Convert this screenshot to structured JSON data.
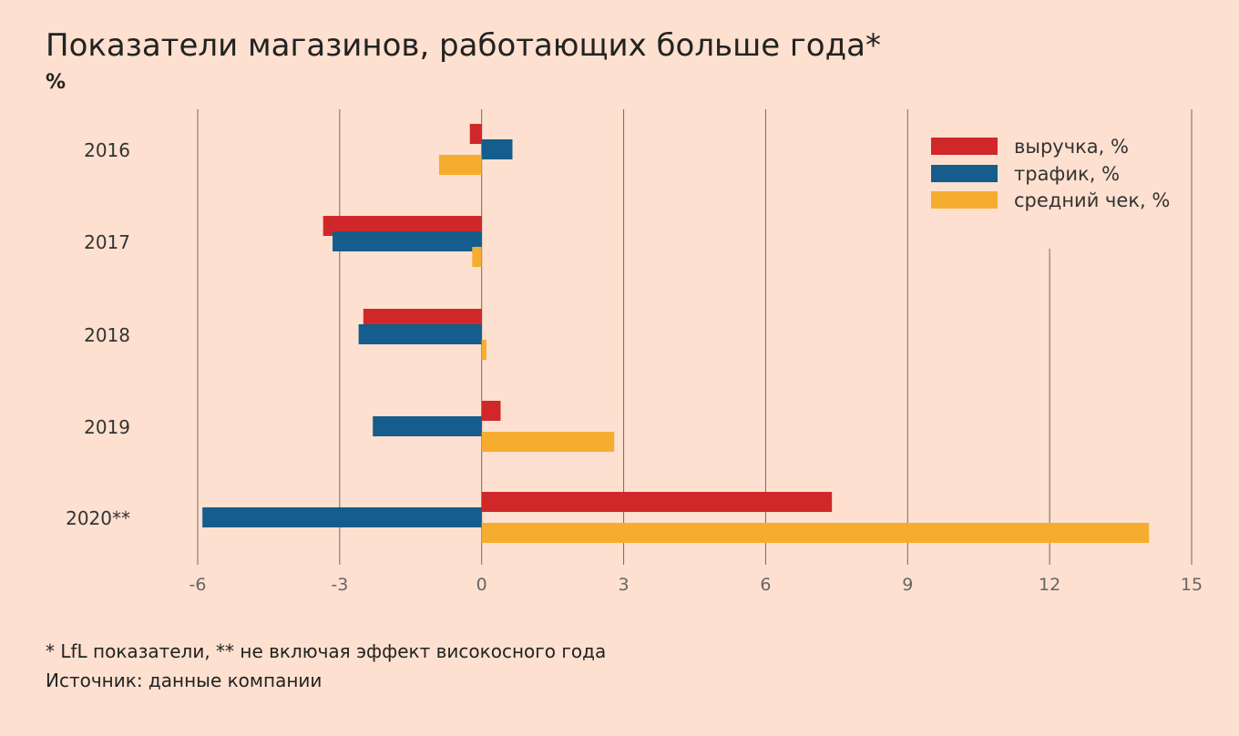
{
  "chart_data": {
    "type": "bar",
    "orientation": "horizontal",
    "title": "Показатели магазинов, работающих больше года*",
    "subtitle": "%",
    "categories": [
      "2016",
      "2017",
      "2018",
      "2019",
      "2020**"
    ],
    "series": [
      {
        "name": "выручка, %",
        "color": "#d0282a",
        "values": [
          -0.25,
          -3.35,
          -2.5,
          0.4,
          7.4
        ]
      },
      {
        "name": "трафик, %",
        "color": "#145d8c",
        "values": [
          0.65,
          -3.15,
          -2.6,
          -2.3,
          -5.9
        ]
      },
      {
        "name": "средний чек, %",
        "color": "#f6ad2f",
        "values": [
          -0.9,
          -0.2,
          0.1,
          2.8,
          14.1
        ]
      }
    ],
    "x_ticks": [
      "-6",
      "-3",
      "0",
      "3",
      "6",
      "9",
      "12",
      "15"
    ],
    "x_tick_values": [
      -6,
      -3,
      0,
      3,
      6,
      9,
      12,
      15
    ],
    "xlim": [
      -6,
      15
    ],
    "legend_position": "top-right",
    "grid": true
  },
  "notes": {
    "footnote": "* LfL показатели, ** не включая эффект високосного года",
    "source": "Источник: данные компании"
  }
}
